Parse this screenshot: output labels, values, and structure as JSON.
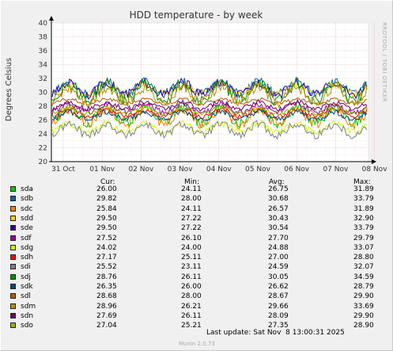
{
  "chart_data": {
    "type": "line",
    "title": "HDD temperature - by week",
    "ylabel": "Degrees Celsius",
    "xlabel": "",
    "ylim": [
      20,
      40
    ],
    "yticks": [
      "20",
      "22",
      "24",
      "26",
      "28",
      "30",
      "32",
      "34",
      "36",
      "38",
      "40"
    ],
    "xticks": [
      "31 Oct",
      "01 Nov",
      "02 Nov",
      "03 Nov",
      "04 Nov",
      "05 Nov",
      "06 Nov",
      "07 Nov",
      "08 Nov"
    ],
    "grid": true,
    "legend_columns": [
      "Cur:",
      "Min:",
      "Avg:",
      "Max:"
    ],
    "series": [
      {
        "name": "sda",
        "color": "#00cc00",
        "cur": "26.00",
        "min": "24.11",
        "avg": "26.75",
        "max": "31.89",
        "avg_value": 26.75,
        "min_value": 24.11,
        "max_value": 31.89
      },
      {
        "name": "sdb",
        "color": "#0066b3",
        "cur": "29.82",
        "min": "28.00",
        "avg": "30.68",
        "max": "33.79",
        "avg_value": 30.68,
        "min_value": 28.0,
        "max_value": 33.79
      },
      {
        "name": "sdc",
        "color": "#ff8000",
        "cur": "25.84",
        "min": "24.11",
        "avg": "26.57",
        "max": "31.89",
        "avg_value": 26.57,
        "min_value": 24.11,
        "max_value": 31.89
      },
      {
        "name": "sdd",
        "color": "#ffcc00",
        "cur": "29.50",
        "min": "27.22",
        "avg": "30.43",
        "max": "32.90",
        "avg_value": 30.43,
        "min_value": 27.22,
        "max_value": 32.9
      },
      {
        "name": "sde",
        "color": "#330099",
        "cur": "29.50",
        "min": "27.22",
        "avg": "30.54",
        "max": "33.79",
        "avg_value": 30.54,
        "min_value": 27.22,
        "max_value": 33.79
      },
      {
        "name": "sdf",
        "color": "#990099",
        "cur": "27.52",
        "min": "26.10",
        "avg": "27.70",
        "max": "29.79",
        "avg_value": 27.7,
        "min_value": 26.1,
        "max_value": 29.79
      },
      {
        "name": "sdg",
        "color": "#ccff00",
        "cur": "24.02",
        "min": "24.00",
        "avg": "24.88",
        "max": "33.07",
        "avg_value": 24.88,
        "min_value": 24.0,
        "max_value": 33.07
      },
      {
        "name": "sdh",
        "color": "#ff0000",
        "cur": "27.17",
        "min": "25.11",
        "avg": "27.00",
        "max": "28.80",
        "avg_value": 27.0,
        "min_value": 25.11,
        "max_value": 28.8
      },
      {
        "name": "sdi",
        "color": "#808080",
        "cur": "25.52",
        "min": "23.11",
        "avg": "24.59",
        "max": "32.07",
        "avg_value": 24.59,
        "min_value": 23.11,
        "max_value": 32.07
      },
      {
        "name": "sdj",
        "color": "#008f00",
        "cur": "28.76",
        "min": "26.11",
        "avg": "30.05",
        "max": "34.59",
        "avg_value": 30.05,
        "min_value": 26.11,
        "max_value": 34.59
      },
      {
        "name": "sdk",
        "color": "#00487d",
        "cur": "26.35",
        "min": "26.00",
        "avg": "26.62",
        "max": "28.79",
        "avg_value": 26.62,
        "min_value": 26.0,
        "max_value": 28.79
      },
      {
        "name": "sdl",
        "color": "#b35a00",
        "cur": "28.68",
        "min": "28.00",
        "avg": "28.67",
        "max": "29.90",
        "avg_value": 28.67,
        "min_value": 28.0,
        "max_value": 29.9
      },
      {
        "name": "sdm",
        "color": "#b38f00",
        "cur": "28.96",
        "min": "26.21",
        "avg": "29.66",
        "max": "33.69",
        "avg_value": 29.66,
        "min_value": 26.21,
        "max_value": 33.69
      },
      {
        "name": "sdn",
        "color": "#6b006b",
        "cur": "27.69",
        "min": "26.11",
        "avg": "28.09",
        "max": "29.90",
        "avg_value": 28.09,
        "min_value": 26.11,
        "max_value": 29.9
      },
      {
        "name": "sdo",
        "color": "#8fb300",
        "cur": "27.04",
        "min": "25.21",
        "avg": "27.35",
        "max": "28.90",
        "avg_value": 27.35,
        "min_value": 25.21,
        "max_value": 28.9
      }
    ]
  },
  "footer": {
    "last_update": "Last update: Sat Nov  8 13:00:31 2025",
    "munin_version": "Munin 2.0.73"
  },
  "watermark": "RRDTOOL / TOBI OETIKER"
}
